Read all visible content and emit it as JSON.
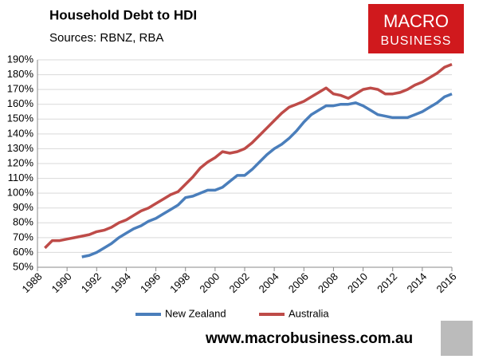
{
  "chart_data": {
    "type": "line",
    "title": "Household Debt to HDI",
    "subtitle": "Sources: RBNZ, RBA",
    "logo": [
      "MACRO",
      "BUSINESS"
    ],
    "footer": "www.macrobusiness.com.au",
    "x": [
      1988,
      1988.5,
      1989,
      1989.5,
      1990,
      1990.5,
      1991,
      1991.5,
      1992,
      1992.5,
      1993,
      1993.5,
      1994,
      1994.5,
      1995,
      1995.5,
      1996,
      1996.5,
      1997,
      1997.5,
      1998,
      1998.5,
      1999,
      1999.5,
      2000,
      2000.5,
      2001,
      2001.5,
      2002,
      2002.5,
      2003,
      2003.5,
      2004,
      2004.5,
      2005,
      2005.5,
      2006,
      2006.5,
      2007,
      2007.5,
      2008,
      2008.5,
      2009,
      2009.5,
      2010,
      2010.5,
      2011,
      2011.5,
      2012,
      2012.5,
      2013,
      2013.5,
      2014,
      2014.5,
      2015,
      2015.5,
      2016
    ],
    "series": [
      {
        "name": "New Zealand",
        "color": "#4a7ebb",
        "values": [
          null,
          null,
          null,
          null,
          null,
          null,
          57,
          58,
          60,
          63,
          66,
          70,
          73,
          76,
          78,
          81,
          83,
          86,
          89,
          92,
          97,
          98,
          100,
          102,
          102,
          104,
          108,
          112,
          112,
          116,
          121,
          126,
          130,
          133,
          137,
          142,
          148,
          153,
          156,
          159,
          159,
          160,
          160,
          161,
          159,
          156,
          153,
          152,
          151,
          151,
          151,
          153,
          155,
          158,
          161,
          165,
          167
        ]
      },
      {
        "name": "Australia",
        "color": "#be4b48",
        "values": [
          null,
          63,
          68,
          68,
          69,
          70,
          71,
          72,
          74,
          75,
          77,
          80,
          82,
          85,
          88,
          90,
          93,
          96,
          99,
          101,
          106,
          111,
          117,
          121,
          124,
          128,
          127,
          128,
          130,
          134,
          139,
          144,
          149,
          154,
          158,
          160,
          162,
          165,
          168,
          171,
          167,
          166,
          164,
          167,
          170,
          171,
          170,
          167,
          167,
          168,
          170,
          173,
          175,
          178,
          181,
          185,
          187
        ]
      }
    ],
    "xlim": [
      1988,
      2016
    ],
    "xticks": [
      1988,
      1990,
      1992,
      1994,
      1996,
      1998,
      2000,
      2002,
      2004,
      2006,
      2008,
      2010,
      2012,
      2014,
      2016
    ],
    "ylim": [
      50,
      190
    ],
    "yticks": [
      {
        "value": 50,
        "label": "50%"
      },
      {
        "value": 60,
        "label": "60%"
      },
      {
        "value": 70,
        "label": "70%"
      },
      {
        "value": 80,
        "label": "80%"
      },
      {
        "value": 90,
        "label": "90%"
      },
      {
        "value": 100,
        "label": "100%"
      },
      {
        "value": 110,
        "label": "110%"
      },
      {
        "value": 120,
        "label": "120%"
      },
      {
        "value": 130,
        "label": "130%"
      },
      {
        "value": 140,
        "label": "140%"
      },
      {
        "value": 150,
        "label": "150%"
      },
      {
        "value": 160,
        "label": "160%"
      },
      {
        "value": 170,
        "label": "170%"
      },
      {
        "value": 180,
        "label": "180%"
      },
      {
        "value": 190,
        "label": "190%"
      }
    ],
    "grid": true,
    "legend": "bottom"
  }
}
